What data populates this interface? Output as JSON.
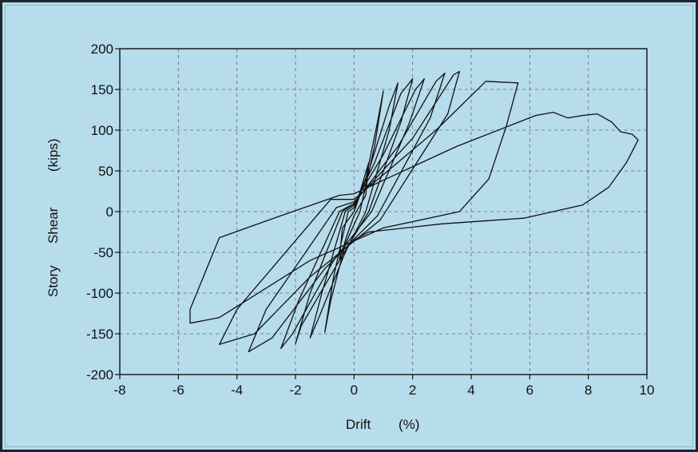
{
  "colors": {
    "background": "#b7dceb",
    "curve": "#111111",
    "axis": "#111111",
    "grid": "#5a6a78"
  },
  "chart_data": {
    "type": "line",
    "xlabel": "Drift (%)",
    "xlabel_parts": [
      "Drift",
      "(%)"
    ],
    "ylabel": "Story Shear (kips)",
    "ylabel_parts": [
      "Story",
      "Shear",
      "(kips)"
    ],
    "xlim": [
      -8,
      10
    ],
    "ylim": [
      -200,
      200
    ],
    "x_ticks": [
      -8,
      -6,
      -4,
      -2,
      0,
      2,
      4,
      6,
      8,
      10
    ],
    "x_tick_labels": [
      "-8",
      "-6",
      "-4",
      "-2",
      "0",
      "2",
      "4",
      "6",
      "8",
      "10"
    ],
    "y_ticks": [
      200,
      150,
      100,
      50,
      0,
      -50,
      -100,
      -150,
      -200
    ],
    "y_tick_labels": [
      "200",
      "150",
      "100",
      "50",
      "0",
      "-50",
      "-100",
      "-150",
      "-200"
    ],
    "grid": "dashed at every major tick",
    "legend": "none",
    "series": [
      {
        "values": [
          [
            0,
            0
          ],
          [
            0.25,
            30
          ],
          [
            0.5,
            60
          ],
          [
            0.4,
            20
          ],
          [
            0,
            -5
          ],
          [
            -0.25,
            -30
          ],
          [
            -0.5,
            -60
          ],
          [
            -0.4,
            -20
          ],
          [
            0,
            0
          ],
          [
            0.4,
            40
          ],
          [
            0.8,
            110
          ],
          [
            1.0,
            148
          ],
          [
            0.7,
            80
          ],
          [
            0.2,
            0
          ],
          [
            -0.3,
            -40
          ],
          [
            -0.8,
            -110
          ],
          [
            -1.0,
            -148
          ],
          [
            -0.7,
            -80
          ],
          [
            -0.2,
            0
          ],
          [
            0,
            5
          ],
          [
            0.5,
            50
          ],
          [
            1.2,
            130
          ],
          [
            1.5,
            158
          ],
          [
            1.2,
            100
          ],
          [
            0.4,
            0
          ],
          [
            -0.3,
            -50
          ],
          [
            -1.2,
            -130
          ],
          [
            -1.5,
            -155
          ],
          [
            -1.1,
            -100
          ],
          [
            -0.3,
            0
          ],
          [
            0,
            8
          ],
          [
            0.7,
            60
          ],
          [
            1.6,
            145
          ],
          [
            2.0,
            163
          ],
          [
            1.6,
            110
          ],
          [
            0.5,
            0
          ],
          [
            -0.5,
            -60
          ],
          [
            -1.8,
            -140
          ],
          [
            -2.0,
            -162
          ],
          [
            -1.5,
            -100
          ],
          [
            -0.4,
            0
          ],
          [
            0,
            10
          ],
          [
            1.0,
            70
          ],
          [
            2.1,
            150
          ],
          [
            2.4,
            163
          ],
          [
            1.9,
            110
          ],
          [
            0.6,
            0
          ],
          [
            -0.7,
            -60
          ],
          [
            -2.1,
            -150
          ],
          [
            -2.5,
            -168
          ],
          [
            -1.9,
            -110
          ],
          [
            -0.5,
            0
          ],
          [
            0,
            10
          ],
          [
            1.5,
            80
          ],
          [
            2.8,
            160
          ],
          [
            3.1,
            170
          ],
          [
            2.6,
            115
          ],
          [
            0.8,
            -5
          ],
          [
            -1.0,
            -70
          ],
          [
            -2.8,
            -155
          ],
          [
            -3.6,
            -172
          ],
          [
            -3.0,
            -120
          ],
          [
            -0.6,
            5
          ],
          [
            0,
            12
          ],
          [
            2.0,
            90
          ],
          [
            3.4,
            168
          ],
          [
            3.6,
            172
          ],
          [
            3.2,
            120
          ],
          [
            0.9,
            -10
          ],
          [
            -1.5,
            -80
          ],
          [
            -3.4,
            -150
          ],
          [
            -4.6,
            -163
          ],
          [
            -4.0,
            -120
          ],
          [
            -0.8,
            15
          ],
          [
            0,
            15
          ],
          [
            2.8,
            100
          ],
          [
            4.5,
            160
          ],
          [
            5.6,
            158
          ],
          [
            5.2,
            105
          ],
          [
            4.6,
            40
          ],
          [
            3.6,
            0
          ],
          [
            1.0,
            -20
          ],
          [
            -1.5,
            -60
          ],
          [
            -4.6,
            -130
          ],
          [
            -5.6,
            -137
          ],
          [
            -5.6,
            -120
          ],
          [
            -4.6,
            -32
          ],
          [
            -2.5,
            -5
          ],
          [
            -0.5,
            20
          ],
          [
            0,
            22
          ],
          [
            3.5,
            80
          ],
          [
            6.2,
            118
          ],
          [
            6.8,
            122
          ],
          [
            7.3,
            115
          ],
          [
            7.8,
            118
          ],
          [
            8.3,
            120
          ],
          [
            8.8,
            110
          ],
          [
            9.1,
            98
          ],
          [
            9.5,
            95
          ],
          [
            9.7,
            88
          ],
          [
            9.3,
            60
          ],
          [
            8.7,
            30
          ],
          [
            7.8,
            8
          ],
          [
            5.8,
            -8
          ],
          [
            3.0,
            -15
          ],
          [
            0.5,
            -25
          ],
          [
            0,
            -35
          ]
        ]
      }
    ]
  }
}
